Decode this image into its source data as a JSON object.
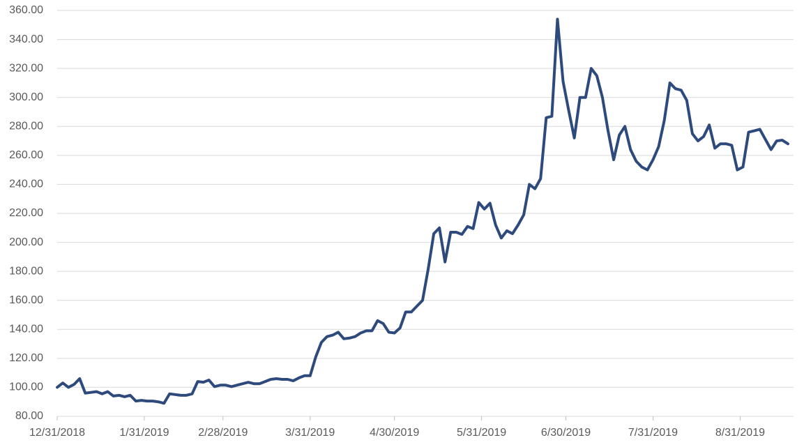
{
  "chart_data": {
    "type": "line",
    "color": "#2e4a7d",
    "grid": true,
    "x": [
      "2018-12-31",
      "2019-01-02",
      "2019-01-04",
      "2019-01-06",
      "2019-01-08",
      "2019-01-10",
      "2019-01-12",
      "2019-01-14",
      "2019-01-16",
      "2019-01-18",
      "2019-01-20",
      "2019-01-22",
      "2019-01-24",
      "2019-01-26",
      "2019-01-28",
      "2019-01-30",
      "2019-02-01",
      "2019-02-03",
      "2019-02-05",
      "2019-02-07",
      "2019-02-09",
      "2019-02-11",
      "2019-02-13",
      "2019-02-15",
      "2019-02-17",
      "2019-02-19",
      "2019-02-21",
      "2019-02-23",
      "2019-02-25",
      "2019-02-27",
      "2019-03-01",
      "2019-03-03",
      "2019-03-05",
      "2019-03-07",
      "2019-03-09",
      "2019-03-11",
      "2019-03-13",
      "2019-03-15",
      "2019-03-17",
      "2019-03-19",
      "2019-03-21",
      "2019-03-23",
      "2019-03-25",
      "2019-03-27",
      "2019-03-29",
      "2019-03-31",
      "2019-04-02",
      "2019-04-04",
      "2019-04-06",
      "2019-04-08",
      "2019-04-10",
      "2019-04-12",
      "2019-04-14",
      "2019-04-16",
      "2019-04-18",
      "2019-04-20",
      "2019-04-22",
      "2019-04-24",
      "2019-04-26",
      "2019-04-28",
      "2019-04-30",
      "2019-05-02",
      "2019-05-04",
      "2019-05-06",
      "2019-05-08",
      "2019-05-10",
      "2019-05-12",
      "2019-05-14",
      "2019-05-16",
      "2019-05-18",
      "2019-05-20",
      "2019-05-22",
      "2019-05-24",
      "2019-05-26",
      "2019-05-28",
      "2019-05-30",
      "2019-06-01",
      "2019-06-03",
      "2019-06-05",
      "2019-06-07",
      "2019-06-09",
      "2019-06-11",
      "2019-06-13",
      "2019-06-15",
      "2019-06-17",
      "2019-06-19",
      "2019-06-21",
      "2019-06-23",
      "2019-06-25",
      "2019-06-27",
      "2019-06-29",
      "2019-07-01",
      "2019-07-03",
      "2019-07-05",
      "2019-07-07",
      "2019-07-09",
      "2019-07-11",
      "2019-07-13",
      "2019-07-15",
      "2019-07-17",
      "2019-07-19",
      "2019-07-21",
      "2019-07-23",
      "2019-07-25",
      "2019-07-27",
      "2019-07-29",
      "2019-07-31",
      "2019-08-02",
      "2019-08-04",
      "2019-08-06",
      "2019-08-08",
      "2019-08-10",
      "2019-08-12",
      "2019-08-14",
      "2019-08-16",
      "2019-08-18",
      "2019-08-20",
      "2019-08-22",
      "2019-08-24",
      "2019-08-26",
      "2019-08-28",
      "2019-08-30",
      "2019-09-01",
      "2019-09-03",
      "2019-09-05",
      "2019-09-07",
      "2019-09-09",
      "2019-09-11",
      "2019-09-13",
      "2019-09-15",
      "2019-09-17"
    ],
    "values": [
      100,
      103,
      100,
      102,
      106,
      96,
      96.5,
      97,
      95.5,
      97,
      94,
      94.5,
      93.5,
      94.5,
      90.5,
      91,
      90.5,
      90.5,
      90,
      89,
      95.5,
      95,
      94.5,
      94.5,
      95.5,
      104,
      103.5,
      105,
      100.5,
      101.5,
      101.5,
      100.5,
      101.5,
      102.5,
      103.5,
      102.5,
      102.5,
      104,
      105.5,
      106,
      105.5,
      105.5,
      104.5,
      106.5,
      108,
      108,
      121,
      131,
      135,
      136,
      138,
      133.5,
      134,
      135,
      137.5,
      139,
      139,
      146,
      144,
      138,
      137.5,
      141,
      152,
      152,
      156,
      160,
      181.5,
      206,
      210,
      186.5,
      207,
      207,
      205.5,
      211,
      209.5,
      227.5,
      223,
      227,
      212,
      203,
      208,
      206,
      212,
      219,
      240,
      237,
      244,
      286,
      287,
      354,
      311,
      291,
      272,
      300,
      300,
      320,
      315,
      300,
      277,
      257,
      274,
      280,
      264,
      256,
      252,
      250,
      257,
      266,
      284,
      310,
      306,
      305,
      298,
      275,
      270,
      273,
      281,
      265,
      268,
      268,
      267,
      250,
      252,
      276,
      277,
      278,
      271,
      264,
      270,
      270.5,
      268
    ],
    "xlim": [
      "2018-12-31",
      "2019-09-19"
    ],
    "xticks": [
      {
        "value": "2018-12-31",
        "label": "12/31/2018"
      },
      {
        "value": "2019-01-31",
        "label": "1/31/2019"
      },
      {
        "value": "2019-02-28",
        "label": "2/28/2019"
      },
      {
        "value": "2019-03-31",
        "label": "3/31/2019"
      },
      {
        "value": "2019-04-30",
        "label": "4/30/2019"
      },
      {
        "value": "2019-05-31",
        "label": "5/31/2019"
      },
      {
        "value": "2019-06-30",
        "label": "6/30/2019"
      },
      {
        "value": "2019-07-31",
        "label": "7/31/2019"
      },
      {
        "value": "2019-08-31",
        "label": "8/31/2019"
      }
    ],
    "ylim": [
      80,
      360
    ],
    "yticks": [
      {
        "value": 80,
        "label": "80.00"
      },
      {
        "value": 100,
        "label": "100.00"
      },
      {
        "value": 120,
        "label": "120.00"
      },
      {
        "value": 140,
        "label": "140.00"
      },
      {
        "value": 160,
        "label": "160.00"
      },
      {
        "value": 180,
        "label": "180.00"
      },
      {
        "value": 200,
        "label": "200.00"
      },
      {
        "value": 220,
        "label": "220.00"
      },
      {
        "value": 240,
        "label": "240.00"
      },
      {
        "value": 260,
        "label": "260.00"
      },
      {
        "value": 280,
        "label": "280.00"
      },
      {
        "value": 300,
        "label": "300.00"
      },
      {
        "value": 320,
        "label": "320.00"
      },
      {
        "value": 340,
        "label": "340.00"
      },
      {
        "value": 360,
        "label": "360.00"
      }
    ]
  }
}
